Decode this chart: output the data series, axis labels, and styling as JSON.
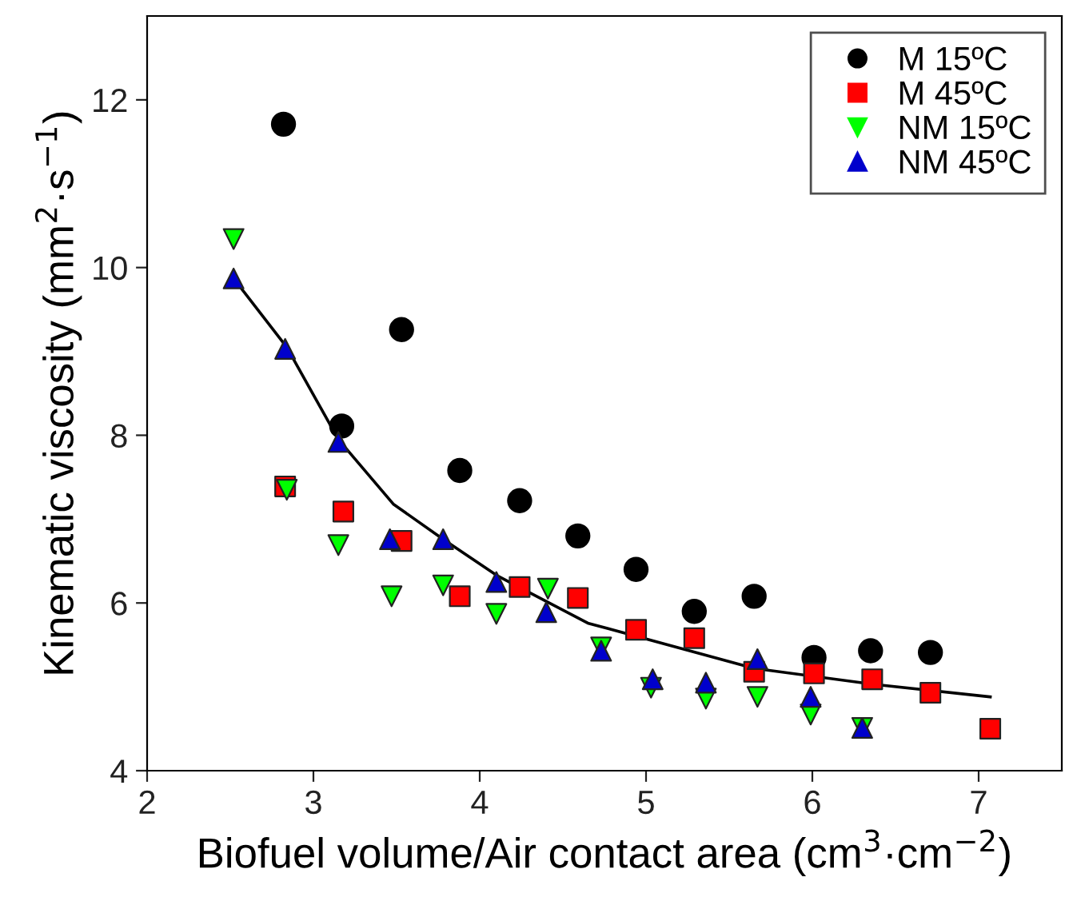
{
  "chart_data": {
    "type": "scatter",
    "xlabel": "Biofuel volume/Air contact area (cm$^{3}$·cm$^{−2}$)",
    "ylabel": "Kinematic viscosity (mm$^{2}$·s$^{−1}$)",
    "xlim": [
      2,
      7.5
    ],
    "ylim": [
      4,
      13
    ],
    "xticks": [
      2,
      3,
      4,
      5,
      6,
      7
    ],
    "yticks": [
      4,
      6,
      8,
      10,
      12
    ],
    "grid": false,
    "legend": "top right",
    "series": [
      {
        "name": "M 15ºC",
        "color": "#000000",
        "marker": "circle",
        "x": [
          2.82,
          3.17,
          3.53,
          3.88,
          4.24,
          4.59,
          4.94,
          5.29,
          5.65,
          6.01,
          6.35,
          6.71
        ],
        "values": [
          11.71,
          8.11,
          9.26,
          7.58,
          7.22,
          6.8,
          6.4,
          5.9,
          6.08,
          5.35,
          5.43,
          5.41
        ]
      },
      {
        "name": "M 45ºC",
        "color": "#ff0000",
        "marker": "square",
        "x": [
          2.83,
          3.18,
          3.53,
          3.88,
          4.24,
          4.59,
          4.94,
          5.29,
          5.65,
          6.01,
          6.36,
          6.71,
          7.07
        ],
        "values": [
          7.39,
          7.09,
          6.74,
          6.08,
          6.19,
          6.06,
          5.68,
          5.58,
          5.18,
          5.16,
          5.09,
          4.93,
          4.5
        ]
      },
      {
        "name": "NM 15ºC",
        "color": "#00ff00",
        "marker": "triangle_down",
        "x": [
          2.52,
          2.84,
          3.15,
          3.47,
          3.78,
          4.1,
          4.41,
          4.73,
          5.03,
          5.36,
          5.67,
          5.99,
          6.3
        ],
        "values": [
          10.34,
          7.35,
          6.69,
          6.08,
          6.21,
          5.87,
          6.17,
          5.47,
          4.99,
          4.86,
          4.88,
          4.67,
          4.51
        ]
      },
      {
        "name": "NM 45ºC",
        "color": "#0000cc",
        "marker": "triangle",
        "x": [
          2.52,
          2.83,
          3.15,
          3.46,
          3.78,
          4.1,
          4.4,
          4.73,
          5.04,
          5.36,
          5.67,
          5.99,
          6.3
        ],
        "values": [
          9.87,
          9.03,
          7.92,
          6.76,
          6.76,
          6.25,
          5.89,
          5.43,
          5.09,
          5.05,
          5.33,
          4.88,
          4.51
        ]
      },
      {
        "type": "line",
        "color": "#000000",
        "marker": "none",
        "x": [
          2.52,
          2.84,
          3.15,
          3.48,
          3.78,
          4.11,
          4.65,
          5.65,
          6.37,
          7.07
        ],
        "values": [
          9.87,
          9.05,
          7.95,
          7.18,
          6.76,
          6.32,
          5.76,
          5.22,
          5.03,
          4.88
        ]
      }
    ]
  }
}
